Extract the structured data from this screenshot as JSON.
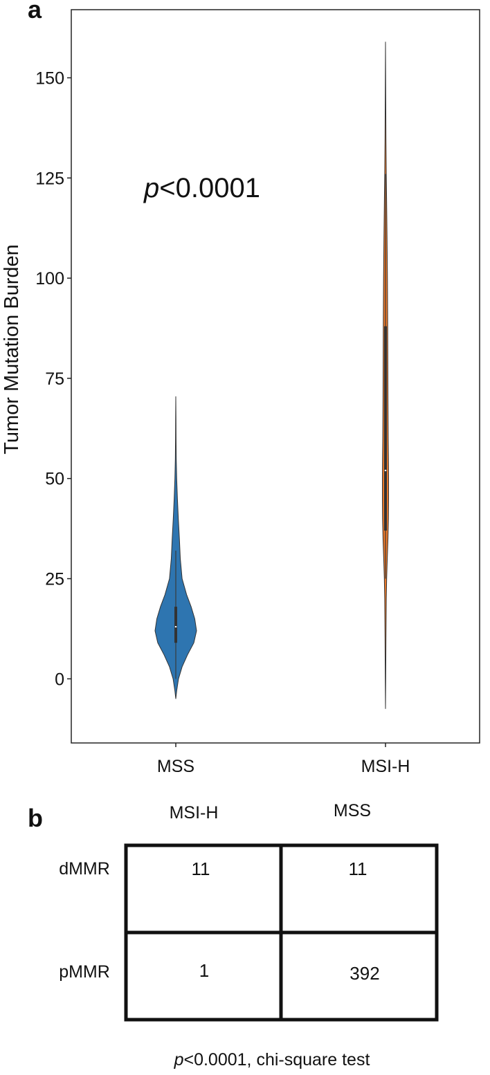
{
  "panels": {
    "a_label": "a",
    "b_label": "b"
  },
  "chart_data": {
    "type": "violin",
    "ylabel": "Tumor Mutation Burden",
    "xlabel": "",
    "ylim": [
      -16,
      167
    ],
    "yticks": [
      0,
      25,
      50,
      75,
      100,
      125,
      150
    ],
    "ytick_labels": [
      "0",
      "25",
      "50",
      "75",
      "100",
      "125",
      "150"
    ],
    "categories": [
      "MSS",
      "MSI-H"
    ],
    "annotation": {
      "italic": "p",
      "rest": "<0.0001"
    },
    "series": [
      {
        "name": "MSS",
        "color": "#2e75b0",
        "range": [
          -5,
          70.5
        ],
        "q1": 9,
        "median": 13,
        "q3": 18,
        "whisker": [
          0,
          32
        ],
        "density": [
          [
            -5,
            0
          ],
          [
            -3,
            1
          ],
          [
            0,
            3
          ],
          [
            3,
            7
          ],
          [
            6,
            13
          ],
          [
            9,
            20
          ],
          [
            12,
            23
          ],
          [
            15,
            21
          ],
          [
            18,
            17
          ],
          [
            21,
            12
          ],
          [
            25,
            7
          ],
          [
            30,
            5
          ],
          [
            35,
            4
          ],
          [
            40,
            2.8
          ],
          [
            45,
            1.8
          ],
          [
            50,
            1.0
          ],
          [
            55,
            0.5
          ],
          [
            60,
            0.3
          ],
          [
            65,
            0.2
          ],
          [
            70.5,
            0
          ]
        ]
      },
      {
        "name": "MSI-H",
        "color": "#e8782a",
        "range": [
          -7.5,
          159
        ],
        "q1": 37,
        "median": 52,
        "q3": 88,
        "whisker": [
          25,
          126
        ],
        "density": [
          [
            -7.5,
            0
          ],
          [
            0,
            0.3
          ],
          [
            10,
            0.6
          ],
          [
            20,
            1.0
          ],
          [
            25,
            1.5
          ],
          [
            30,
            2.3
          ],
          [
            35,
            3.2
          ],
          [
            40,
            3.8
          ],
          [
            45,
            4.0
          ],
          [
            50,
            4.0
          ],
          [
            55,
            3.8
          ],
          [
            60,
            3.5
          ],
          [
            70,
            3.2
          ],
          [
            80,
            3.0
          ],
          [
            90,
            2.8
          ],
          [
            100,
            2.5
          ],
          [
            110,
            2.0
          ],
          [
            120,
            1.4
          ],
          [
            126,
            1.0
          ],
          [
            135,
            0.6
          ],
          [
            145,
            0.35
          ],
          [
            159,
            0
          ]
        ]
      }
    ]
  },
  "contingency": {
    "col_headers": [
      "MSI-H",
      "MSS"
    ],
    "rows": [
      {
        "label": "dMMR",
        "values": [
          "11",
          "11"
        ]
      },
      {
        "label": "pMMR",
        "values": [
          "1",
          "392"
        ]
      }
    ],
    "footnote": {
      "italic": "p",
      "rest": "<0.0001, chi-square test"
    }
  }
}
